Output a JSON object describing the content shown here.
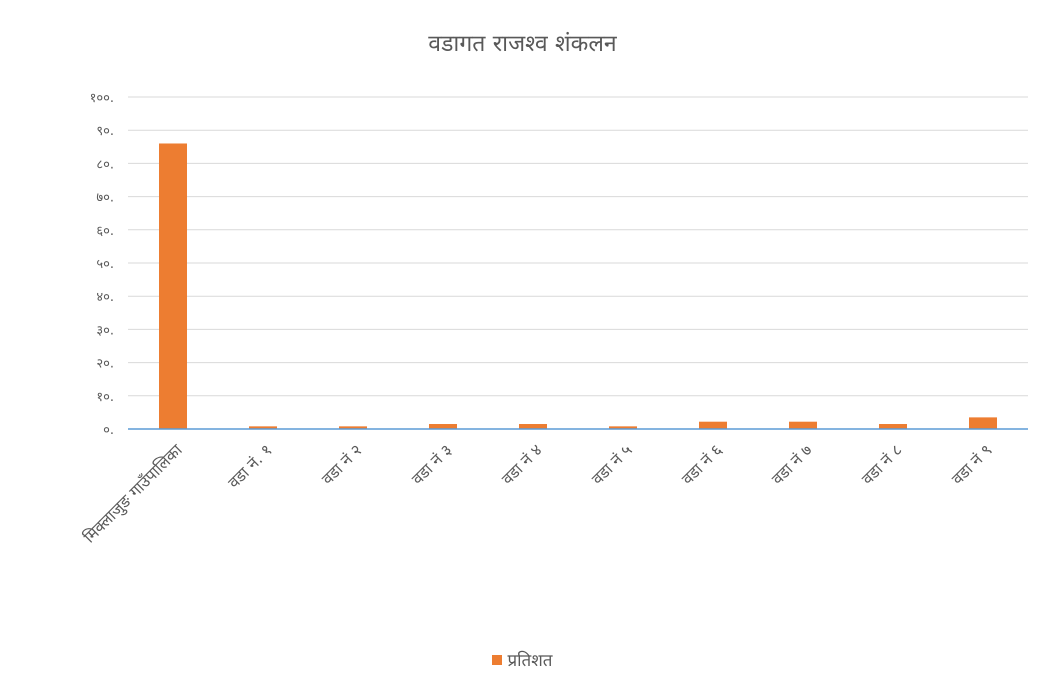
{
  "chart_data": {
    "type": "bar",
    "title": "वडागत राजश्व शंकलन",
    "categories": [
      "मिक्लाजुङ गाउँपालिका",
      "वडा नं. १",
      "वडा नं २",
      "वडा नं ३",
      "वडा नं ४",
      "वडा नं ५",
      "वडा नं ६",
      "वडा नं ७",
      "वडा नं ८",
      "वडा नं ९"
    ],
    "series": [
      {
        "name": "प्रतिशत",
        "values": [
          86,
          0.8,
          0.8,
          1.5,
          1.5,
          0.8,
          2.2,
          2.2,
          1.5,
          3.5
        ]
      }
    ],
    "y_tick_labels": [
      "०.",
      "१०.",
      "२०.",
      "३०.",
      "४०.",
      "५०.",
      "६०.",
      "७०.",
      "८०.",
      "९०.",
      "१००."
    ],
    "ylim": [
      0,
      100
    ],
    "xlabel": "",
    "ylabel": "",
    "grid": true,
    "legend": "bottom",
    "colors": {
      "bar": "#ed7d31",
      "grid": "#d9d9d9",
      "axis": "#5b9bd5",
      "text": "#595959"
    }
  }
}
